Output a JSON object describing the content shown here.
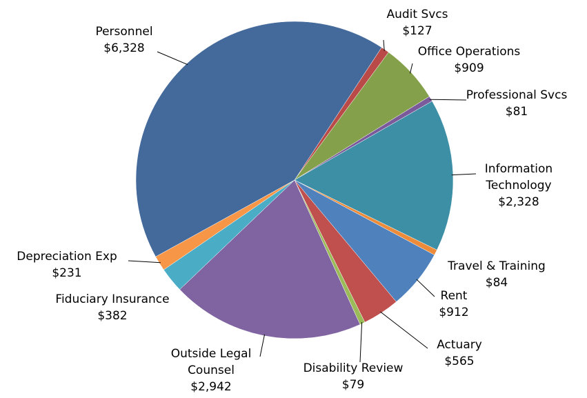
{
  "chart_data": {
    "type": "pie",
    "categories": [
      "Audit Svcs",
      "Office Operations",
      "Professional Svcs",
      "Information Technology",
      "Travel & Training",
      "Rent",
      "Actuary",
      "Disability Review",
      "Outside Legal Counsel",
      "Fiduciary Insurance",
      "Depreciation Exp",
      "Personnel"
    ],
    "values": [
      127,
      909,
      81,
      2328,
      84,
      912,
      565,
      79,
      2942,
      382,
      231,
      6328
    ],
    "value_labels": [
      "$127",
      "$909",
      "$81",
      "$2,328",
      "$84",
      "$912",
      "$565",
      "$79",
      "$2,942",
      "$382",
      "$231",
      "$6,328"
    ],
    "colors": [
      "#b94a48",
      "#84a04a",
      "#7a5a9a",
      "#3d8fa6",
      "#ec8c3a",
      "#4f81bd",
      "#c0504d",
      "#9bbb59",
      "#8064a2",
      "#4bacc6",
      "#f79646",
      "#44699b"
    ]
  }
}
